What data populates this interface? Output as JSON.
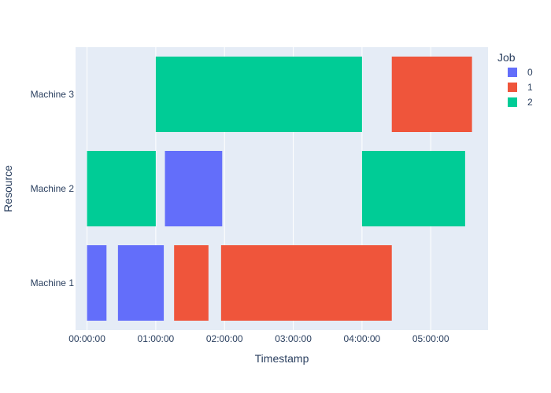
{
  "chart_data": {
    "type": "gantt",
    "xlabel": "Timestamp",
    "ylabel": "Resource",
    "x_ticks": [
      "00:00:00",
      "01:00:00",
      "02:00:00",
      "03:00:00",
      "04:00:00",
      "05:00:00"
    ],
    "xlim": [
      "-00:10:00",
      "05:50:00"
    ],
    "categories": [
      "Machine 3",
      "Machine 2",
      "Machine 1"
    ],
    "grid": true,
    "legend": {
      "title": "Job",
      "placement": "top-right",
      "entries": [
        {
          "label": "0",
          "color": "#636efa"
        },
        {
          "label": "1",
          "color": "#ef553b"
        },
        {
          "label": "2",
          "color": "#00cc96"
        }
      ]
    },
    "tasks": [
      {
        "resource": "Machine 1",
        "job": "0",
        "start": "00:00:00",
        "finish": "00:17:00"
      },
      {
        "resource": "Machine 1",
        "job": "0",
        "start": "00:27:00",
        "finish": "01:07:00"
      },
      {
        "resource": "Machine 1",
        "job": "1",
        "start": "01:16:00",
        "finish": "01:46:00"
      },
      {
        "resource": "Machine 1",
        "job": "1",
        "start": "01:57:00",
        "finish": "04:26:00"
      },
      {
        "resource": "Machine 2",
        "job": "2",
        "start": "00:00:00",
        "finish": "01:00:00"
      },
      {
        "resource": "Machine 2",
        "job": "0",
        "start": "01:08:00",
        "finish": "01:58:00"
      },
      {
        "resource": "Machine 2",
        "job": "2",
        "start": "04:00:00",
        "finish": "05:30:00"
      },
      {
        "resource": "Machine 3",
        "job": "2",
        "start": "01:00:00",
        "finish": "04:00:00"
      },
      {
        "resource": "Machine 3",
        "job": "1",
        "start": "04:26:00",
        "finish": "05:36:00"
      }
    ]
  },
  "colors": {
    "plot_bg": "#e5ecf6",
    "grid": "#ffffff",
    "text": "#2a3f5f"
  }
}
